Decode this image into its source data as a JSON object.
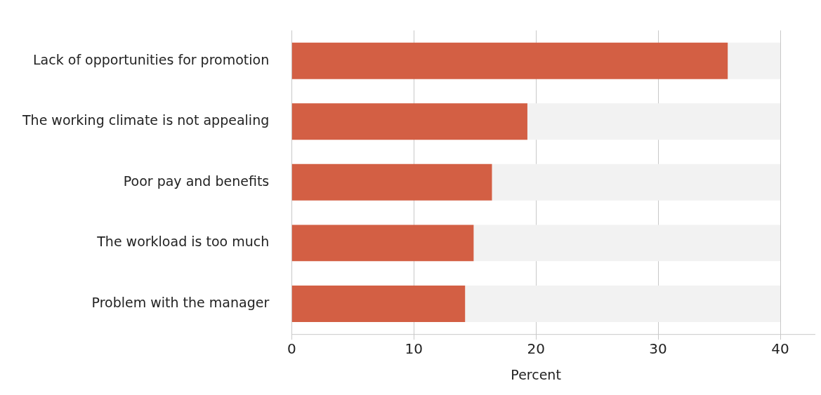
{
  "chart_data": {
    "type": "bar",
    "orientation": "horizontal",
    "xlabel": "Percent",
    "categories": [
      "Lack of opportunities for promotion",
      "The working climate is not appealing",
      "Poor pay and benefits",
      "The workload is too much",
      "Problem with the manager"
    ],
    "stacked": true,
    "series": [
      {
        "color": "#d35f44",
        "values": [
          35.7,
          19.3,
          16.4,
          14.9,
          14.2
        ]
      },
      {
        "color": "#f2f2f2",
        "values": [
          4.3,
          20.7,
          23.6,
          25.1,
          25.8
        ]
      }
    ],
    "xlim": [
      0,
      40
    ],
    "xticks": [
      0,
      10,
      20,
      30,
      40
    ],
    "grid": "x",
    "legend": false
  }
}
